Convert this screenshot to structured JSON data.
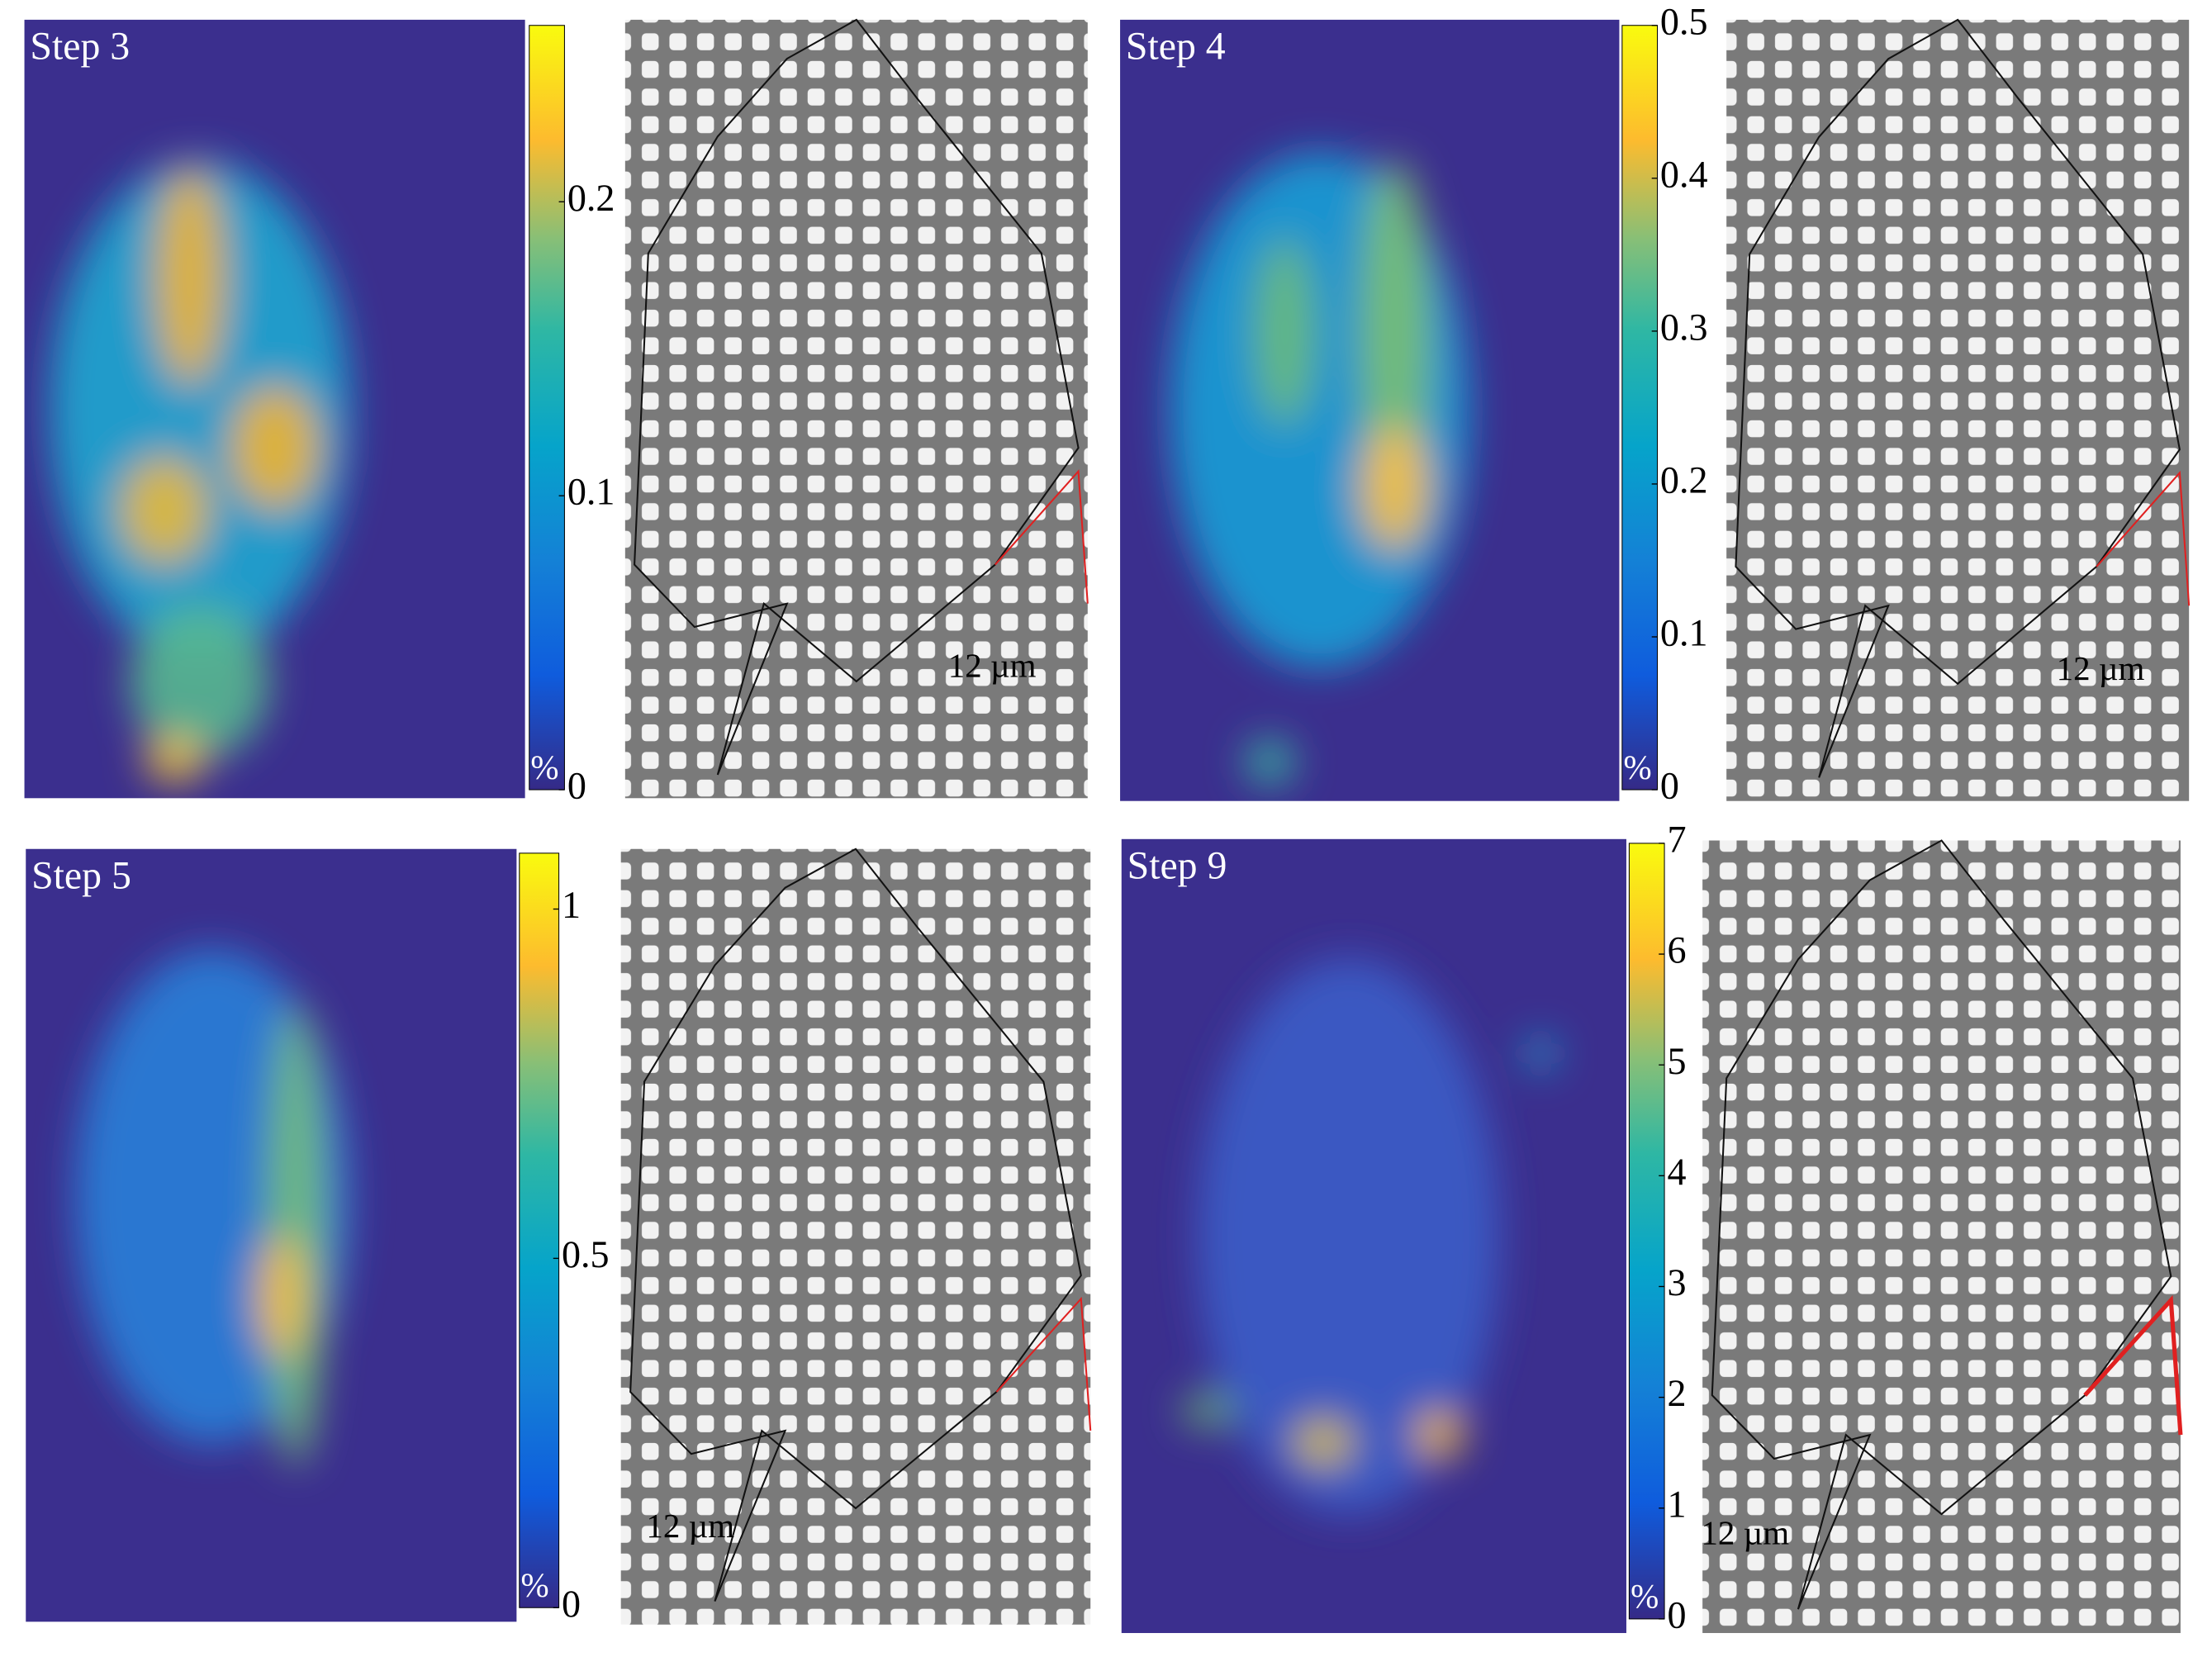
{
  "panels": [
    {
      "label": "Step 3",
      "colorbar": {
        "lim": [
          0,
          0.26
        ],
        "ticks": [
          0,
          0.1,
          0.2
        ],
        "unit": "%"
      },
      "scale_bar": "12 µm"
    },
    {
      "label": "Step 4",
      "colorbar": {
        "lim": [
          0,
          0.5
        ],
        "ticks": [
          0,
          0.1,
          0.2,
          0.3,
          0.4,
          0.5
        ],
        "unit": "%"
      },
      "scale_bar": "12 µm"
    },
    {
      "label": "Step 5",
      "colorbar": {
        "lim": [
          0,
          1.08
        ],
        "ticks": [
          0,
          0.5,
          1
        ],
        "unit": "%"
      },
      "scale_bar": "12 µm"
    },
    {
      "label": "Step 9",
      "colorbar": {
        "lim": [
          0,
          7
        ],
        "ticks": [
          0,
          1,
          2,
          3,
          4,
          5,
          6,
          7
        ],
        "unit": "%"
      },
      "scale_bar": "12 µm"
    }
  ]
}
